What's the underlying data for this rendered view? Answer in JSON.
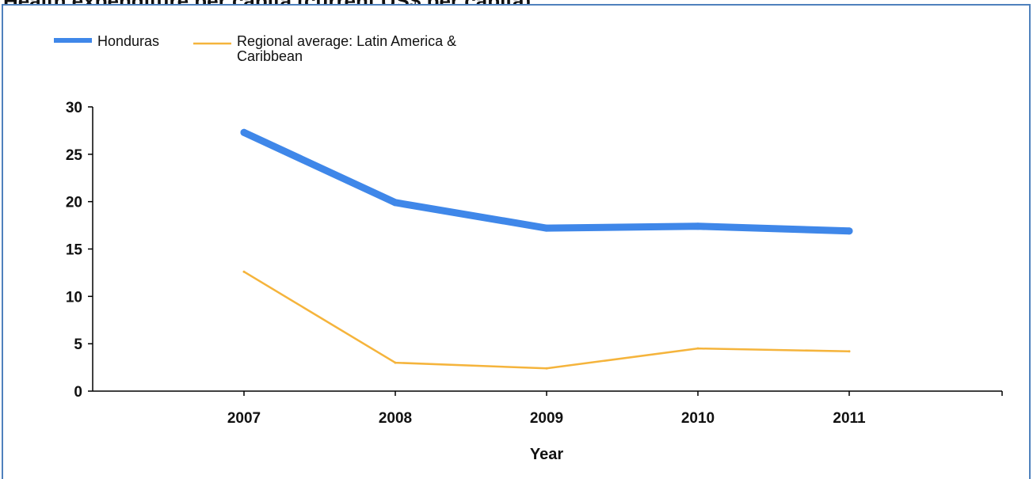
{
  "page": {
    "title": "Health expenditure per capita (current US$ per capita)"
  },
  "chart_data": {
    "type": "line",
    "title": "",
    "xlabel": "Year",
    "ylabel": "",
    "categories": [
      "2007",
      "2008",
      "2009",
      "2010",
      "2011"
    ],
    "ylim": [
      0,
      30
    ],
    "yticks": [
      0,
      5,
      10,
      15,
      20,
      25,
      30
    ],
    "grid": false,
    "legend_position": "top-left",
    "series": [
      {
        "name": "Honduras",
        "values": [
          27.3,
          19.9,
          17.2,
          17.4,
          16.9
        ],
        "color": "#3f87e9",
        "line_style": "thick"
      },
      {
        "name": "Regional average: Latin America & Caribbean",
        "values": [
          12.6,
          3.0,
          2.4,
          4.5,
          4.2
        ],
        "color": "#f5b43c",
        "line_style": "thin"
      }
    ]
  },
  "colors": {
    "frame_border": "#4f81bd",
    "axis": "#000000",
    "text": "#111111"
  }
}
